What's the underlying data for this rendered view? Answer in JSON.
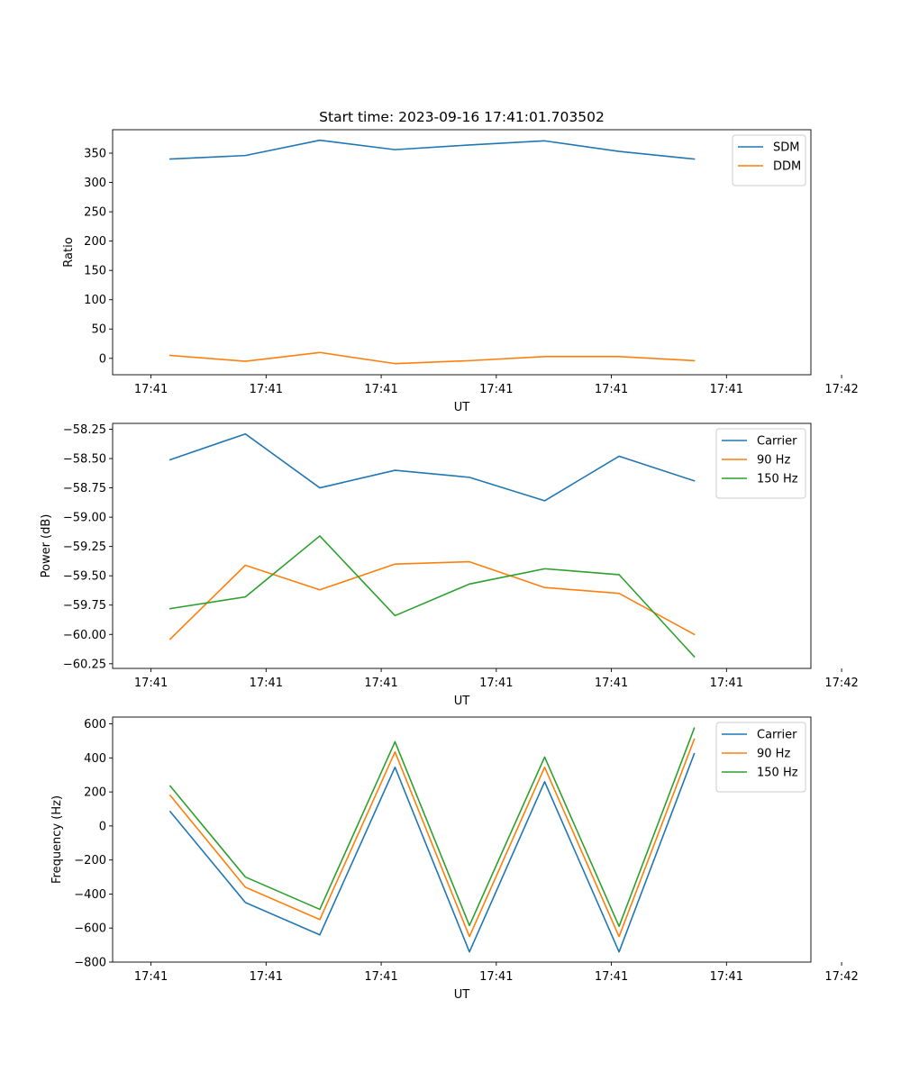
{
  "chart_data": [
    {
      "type": "line",
      "title": "Start time: 2023-09-16 17:41:01.703502",
      "xlabel": "UT",
      "ylabel": "Ratio",
      "xlim": [
        -0.5,
        8.6
      ],
      "x": [
        0.25,
        1.23,
        2.2,
        3.18,
        4.15,
        5.13,
        6.1,
        7.08
      ],
      "xticks": [
        {
          "x": 0,
          "label": "17:41"
        },
        {
          "x": 1.5,
          "label": "17:41"
        },
        {
          "x": 3,
          "label": "17:41"
        },
        {
          "x": 4.5,
          "label": "17:41"
        },
        {
          "x": 6,
          "label": "17:41"
        },
        {
          "x": 7.5,
          "label": "17:41"
        },
        {
          "x": 9,
          "label": "17:42"
        }
      ],
      "ylim": [
        -28,
        390
      ],
      "yticks": [
        0,
        50,
        100,
        150,
        200,
        250,
        300,
        350
      ],
      "legend": "upper right",
      "series": [
        {
          "name": "SDM",
          "color": "#1f77b4",
          "values": [
            340,
            346,
            372,
            356,
            364,
            371,
            353,
            340
          ]
        },
        {
          "name": "DDM",
          "color": "#ff7f0e",
          "values": [
            5,
            -5,
            10,
            -9,
            -4,
            3,
            3,
            -4
          ]
        }
      ]
    },
    {
      "type": "line",
      "title": "",
      "xlabel": "UT",
      "ylabel": "Power (dB)",
      "xlim": [
        -0.5,
        8.6
      ],
      "x": [
        0.25,
        1.23,
        2.2,
        3.18,
        4.15,
        5.13,
        6.1,
        7.08
      ],
      "xticks": [
        {
          "x": 0,
          "label": "17:41"
        },
        {
          "x": 1.5,
          "label": "17:41"
        },
        {
          "x": 3,
          "label": "17:41"
        },
        {
          "x": 4.5,
          "label": "17:41"
        },
        {
          "x": 6,
          "label": "17:41"
        },
        {
          "x": 7.5,
          "label": "17:41"
        },
        {
          "x": 9,
          "label": "17:42"
        }
      ],
      "ylim": [
        -60.29,
        -58.2
      ],
      "yticks": [
        -58.25,
        -58.5,
        -58.75,
        -59.0,
        -59.25,
        -59.5,
        -59.75,
        -60.0,
        -60.25
      ],
      "yticklabels": [
        "−58.25",
        "−58.50",
        "−58.75",
        "−59.00",
        "−59.25",
        "−59.50",
        "−59.75",
        "−60.00",
        "−60.25"
      ],
      "legend": "upper right",
      "series": [
        {
          "name": "Carrier",
          "color": "#1f77b4",
          "values": [
            -58.51,
            -58.29,
            -58.75,
            -58.6,
            -58.66,
            -58.86,
            -58.48,
            -58.69
          ]
        },
        {
          "name": "90 Hz",
          "color": "#ff7f0e",
          "values": [
            -60.04,
            -59.41,
            -59.62,
            -59.4,
            -59.38,
            -59.6,
            -59.65,
            -60.0
          ]
        },
        {
          "name": "150 Hz",
          "color": "#2ca02c",
          "values": [
            -59.78,
            -59.68,
            -59.16,
            -59.84,
            -59.57,
            -59.44,
            -59.49,
            -60.19
          ]
        }
      ]
    },
    {
      "type": "line",
      "title": "",
      "xlabel": "UT",
      "ylabel": "Frequency (Hz)",
      "xlim": [
        -0.5,
        8.6
      ],
      "x": [
        0.25,
        1.23,
        2.2,
        3.18,
        4.15,
        5.13,
        6.1,
        7.08
      ],
      "xticks": [
        {
          "x": 0,
          "label": "17:41"
        },
        {
          "x": 1.5,
          "label": "17:41"
        },
        {
          "x": 3,
          "label": "17:41"
        },
        {
          "x": 4.5,
          "label": "17:41"
        },
        {
          "x": 6,
          "label": "17:41"
        },
        {
          "x": 7.5,
          "label": "17:41"
        },
        {
          "x": 9,
          "label": "17:42"
        }
      ],
      "ylim": [
        -800,
        640
      ],
      "yticks": [
        600,
        400,
        200,
        0,
        -200,
        -400,
        -600,
        -800
      ],
      "yticklabels": [
        "600",
        "400",
        "200",
        "0",
        "−200",
        "−400",
        "−600",
        "−800"
      ],
      "legend": "upper right",
      "series": [
        {
          "name": "Carrier",
          "color": "#1f77b4",
          "values": [
            85,
            -450,
            -640,
            345,
            -740,
            260,
            -740,
            425
          ]
        },
        {
          "name": "90 Hz",
          "color": "#ff7f0e",
          "values": [
            180,
            -360,
            -550,
            435,
            -650,
            345,
            -650,
            510
          ]
        },
        {
          "name": "150 Hz",
          "color": "#2ca02c",
          "values": [
            235,
            -300,
            -490,
            495,
            -585,
            405,
            -590,
            575
          ]
        }
      ]
    }
  ]
}
